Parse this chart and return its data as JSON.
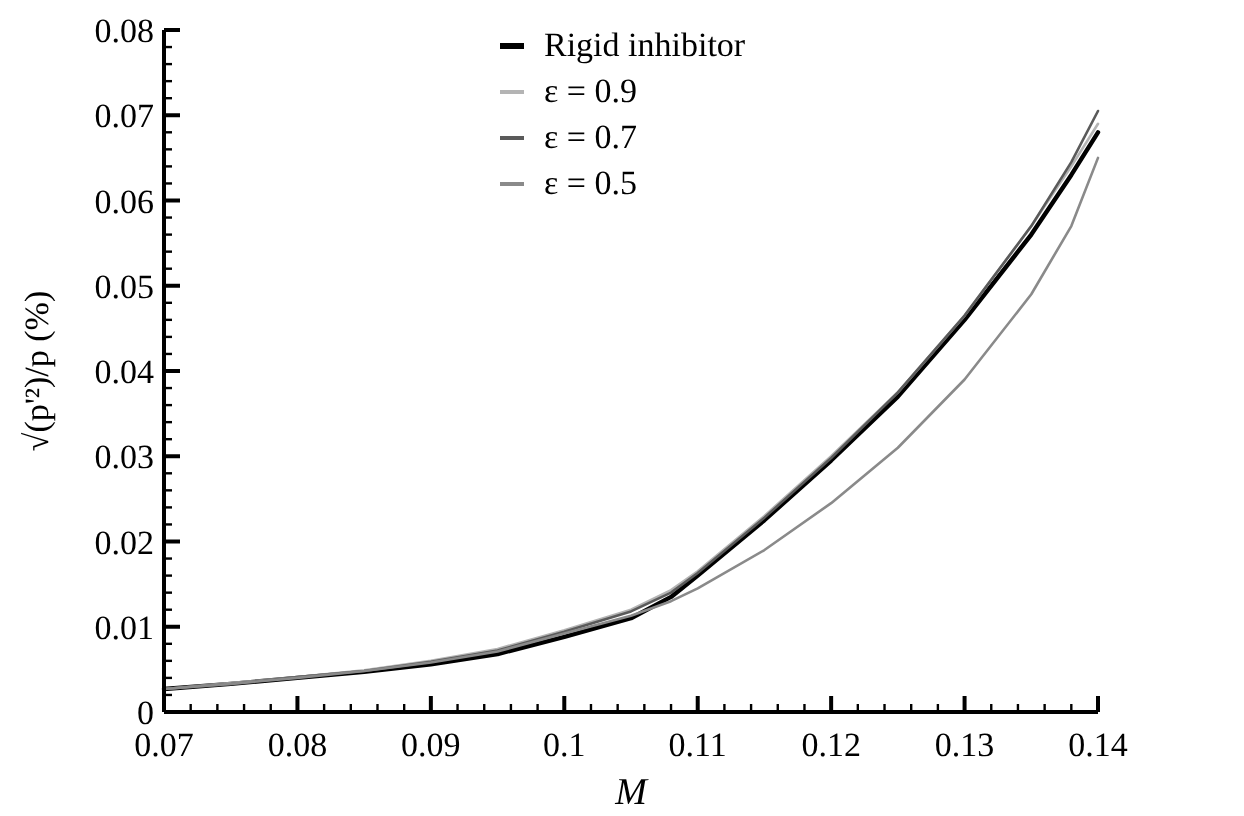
{
  "chart_data": {
    "type": "line",
    "xlabel": "M",
    "ylabel": "√(p'²)/p (%)",
    "xlim": [
      0.07,
      0.14
    ],
    "ylim": [
      0,
      0.08
    ],
    "xticks": [
      0.07,
      0.08,
      0.09,
      0.1,
      0.11,
      0.12,
      0.13,
      0.14
    ],
    "yticks": [
      0,
      0.01,
      0.02,
      0.03,
      0.04,
      0.05,
      0.06,
      0.07,
      0.08
    ],
    "x": [
      0.07,
      0.075,
      0.08,
      0.085,
      0.09,
      0.095,
      0.1,
      0.105,
      0.108,
      0.11,
      0.115,
      0.12,
      0.125,
      0.13,
      0.135,
      0.138,
      0.14
    ],
    "legend": "top",
    "grid": false,
    "marker": "none",
    "line_style": "solid",
    "series": [
      {
        "name": "Rigid inhibitor",
        "color": "#000000",
        "values": [
          0.0027,
          0.0033,
          0.004,
          0.0047,
          0.0056,
          0.0068,
          0.0088,
          0.011,
          0.0135,
          0.016,
          0.0225,
          0.0295,
          0.037,
          0.046,
          0.056,
          0.063,
          0.068
        ]
      },
      {
        "name": "ε = 0.9",
        "color": "#b4b4b4",
        "values": [
          0.0027,
          0.0034,
          0.0041,
          0.0049,
          0.006,
          0.0074,
          0.0096,
          0.012,
          0.0143,
          0.0165,
          0.023,
          0.03,
          0.0375,
          0.0465,
          0.057,
          0.064,
          0.069
        ]
      },
      {
        "name": "ε = 0.7",
        "color": "#5a5a5a",
        "values": [
          0.0027,
          0.0033,
          0.0041,
          0.0048,
          0.0059,
          0.0072,
          0.0094,
          0.0118,
          0.014,
          0.0163,
          0.0228,
          0.0298,
          0.0375,
          0.0465,
          0.057,
          0.0645,
          0.0705
        ]
      },
      {
        "name": "ε = 0.5",
        "color": "#8a8a8a",
        "values": [
          0.0027,
          0.0033,
          0.004,
          0.0048,
          0.0058,
          0.0071,
          0.0092,
          0.0113,
          0.013,
          0.0145,
          0.019,
          0.0245,
          0.031,
          0.039,
          0.049,
          0.057,
          0.065
        ]
      }
    ]
  }
}
